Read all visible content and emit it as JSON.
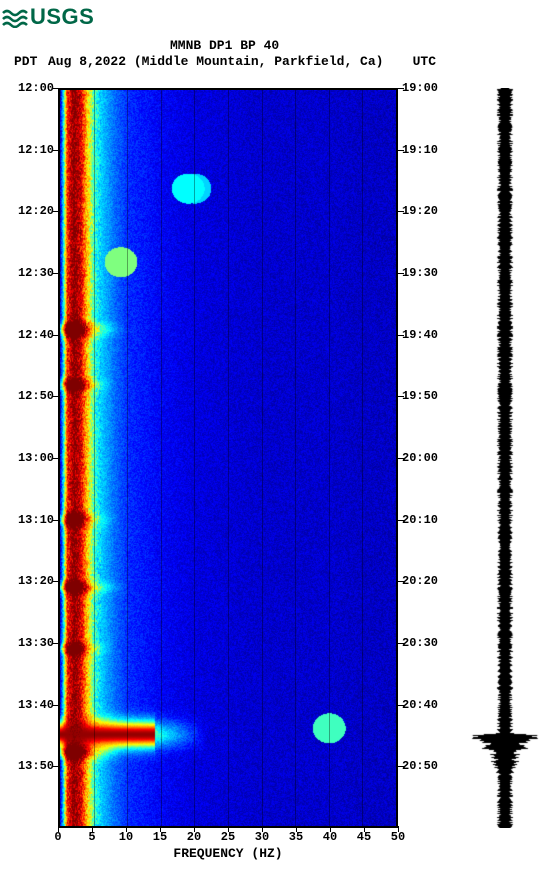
{
  "logo": {
    "text": "USGS",
    "color": "#006747"
  },
  "header": {
    "title": "MMNB DP1 BP 40",
    "date_line": "Aug 8,2022 (Middle Mountain, Parkfield, Ca)",
    "tz_left": "PDT",
    "tz_right": "UTC"
  },
  "spectrogram": {
    "type": "spectrogram",
    "xlabel": "FREQUENCY (HZ)",
    "xlim": [
      0,
      50
    ],
    "xtick_step": 5,
    "xtick_labels": [
      "0",
      "5",
      "10",
      "15",
      "20",
      "25",
      "30",
      "35",
      "40",
      "45",
      "50"
    ],
    "ylim_minutes": [
      0,
      120
    ],
    "ytick_minutes": [
      0,
      10,
      20,
      30,
      40,
      50,
      60,
      70,
      80,
      90,
      100,
      110
    ],
    "y_labels_left": [
      "12:00",
      "12:10",
      "12:20",
      "12:30",
      "12:40",
      "12:50",
      "13:00",
      "13:10",
      "13:20",
      "13:30",
      "13:40",
      "13:50"
    ],
    "y_labels_right": [
      "19:00",
      "19:10",
      "19:20",
      "19:30",
      "19:40",
      "19:50",
      "20:00",
      "20:10",
      "20:20",
      "20:30",
      "20:40",
      "20:50"
    ],
    "grid_color": "rgba(0,0,0,0.35)",
    "border_color": "#000000",
    "label_fontsize": 12,
    "axis_label_fontsize": 13,
    "colormap": {
      "stops": [
        [
          0.0,
          "#00007f"
        ],
        [
          0.15,
          "#0000ff"
        ],
        [
          0.3,
          "#007fff"
        ],
        [
          0.45,
          "#00ffff"
        ],
        [
          0.55,
          "#7fff7f"
        ],
        [
          0.65,
          "#ffff00"
        ],
        [
          0.78,
          "#ff7f00"
        ],
        [
          0.88,
          "#ff0000"
        ],
        [
          1.0,
          "#7f0000"
        ]
      ]
    },
    "base_energy_profile": [
      [
        0,
        0.1
      ],
      [
        1,
        0.85
      ],
      [
        2,
        1.0
      ],
      [
        3,
        0.92
      ],
      [
        4,
        0.7
      ],
      [
        5,
        0.5
      ],
      [
        6,
        0.4
      ],
      [
        8,
        0.28
      ],
      [
        10,
        0.2
      ],
      [
        15,
        0.14
      ],
      [
        20,
        0.11
      ],
      [
        25,
        0.1
      ],
      [
        30,
        0.09
      ],
      [
        35,
        0.09
      ],
      [
        40,
        0.09
      ],
      [
        45,
        0.08
      ],
      [
        50,
        0.08
      ]
    ],
    "events": [
      {
        "t": 39,
        "gain": 0.35,
        "span_hz": 10,
        "width_min": 1.2
      },
      {
        "t": 48,
        "gain": 0.3,
        "span_hz": 8,
        "width_min": 1.0
      },
      {
        "t": 70,
        "gain": 0.25,
        "span_hz": 9,
        "width_min": 1.2
      },
      {
        "t": 81,
        "gain": 0.3,
        "span_hz": 10,
        "width_min": 1.0
      },
      {
        "t": 91,
        "gain": 0.25,
        "span_hz": 8,
        "width_min": 1.0
      },
      {
        "t": 105,
        "gain": 1.0,
        "span_hz": 22,
        "width_min": 2.2,
        "saturate_hz": 14
      },
      {
        "t": 108,
        "gain": 0.3,
        "span_hz": 9,
        "width_min": 1.0
      }
    ],
    "speckles": [
      {
        "t": 16,
        "f": 19,
        "v": 0.45
      },
      {
        "t": 16,
        "f": 20,
        "v": 0.4
      },
      {
        "t": 28,
        "f": 9,
        "v": 0.55
      },
      {
        "t": 104,
        "f": 40,
        "v": 0.5
      }
    ]
  },
  "seismogram": {
    "type": "waveform",
    "color": "#000000",
    "background": "#ffffff",
    "baseline_amplitude": 0.18,
    "events": [
      {
        "t": 105,
        "peak": 1.0,
        "decay_min": 4
      }
    ]
  }
}
